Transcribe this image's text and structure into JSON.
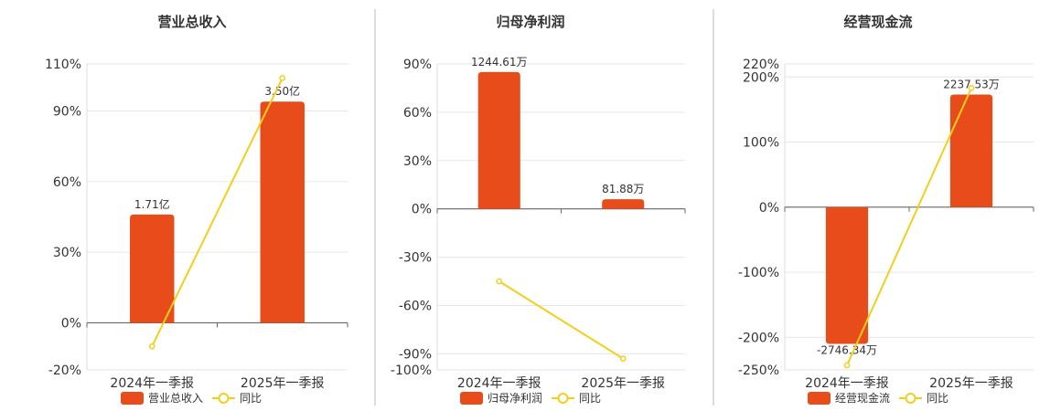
{
  "colors": {
    "bar": "#E84C1B",
    "line": "#F2CF1A",
    "grid": "#E6E6E6",
    "axis": "#666666",
    "divider": "#BBBBBB"
  },
  "chart_data": [
    {
      "type": "bar",
      "title": "营业总收入",
      "categories": [
        "2024年一季报",
        "2025年一季报"
      ],
      "series": [
        {
          "name": "营业总收入",
          "kind": "bar",
          "values": [
            46,
            94
          ],
          "labels": [
            "1.71亿",
            "3.50亿"
          ]
        },
        {
          "name": "同比",
          "kind": "line",
          "values": [
            -10,
            104
          ]
        }
      ],
      "yticks": [
        110,
        90,
        60,
        30,
        0,
        -20
      ],
      "ylim": [
        -20,
        110
      ],
      "grid": true,
      "legend": "bottom"
    },
    {
      "type": "bar",
      "title": "归母净利润",
      "categories": [
        "2024年一季报",
        "2025年一季报"
      ],
      "series": [
        {
          "name": "归母净利润",
          "kind": "bar",
          "values": [
            85,
            6
          ],
          "labels": [
            "1244.61万",
            "81.88万"
          ]
        },
        {
          "name": "同比",
          "kind": "line",
          "values": [
            -45,
            -93
          ]
        }
      ],
      "yticks": [
        90,
        60,
        30,
        0,
        -30,
        -60,
        -90,
        -100
      ],
      "ylim": [
        -100,
        90
      ],
      "grid": true,
      "legend": "bottom"
    },
    {
      "type": "bar",
      "title": "经营现金流",
      "categories": [
        "2024年一季报",
        "2025年一季报"
      ],
      "series": [
        {
          "name": "经营现金流",
          "kind": "bar",
          "values": [
            -210,
            173
          ],
          "labels": [
            "-2746.34万",
            "2237.53万"
          ]
        },
        {
          "name": "同比",
          "kind": "line",
          "values": [
            -243,
            183
          ]
        }
      ],
      "yticks": [
        220,
        200,
        100,
        0,
        -100,
        -200,
        -250
      ],
      "ylim": [
        -250,
        220
      ],
      "grid": true,
      "legend": "bottom"
    }
  ]
}
